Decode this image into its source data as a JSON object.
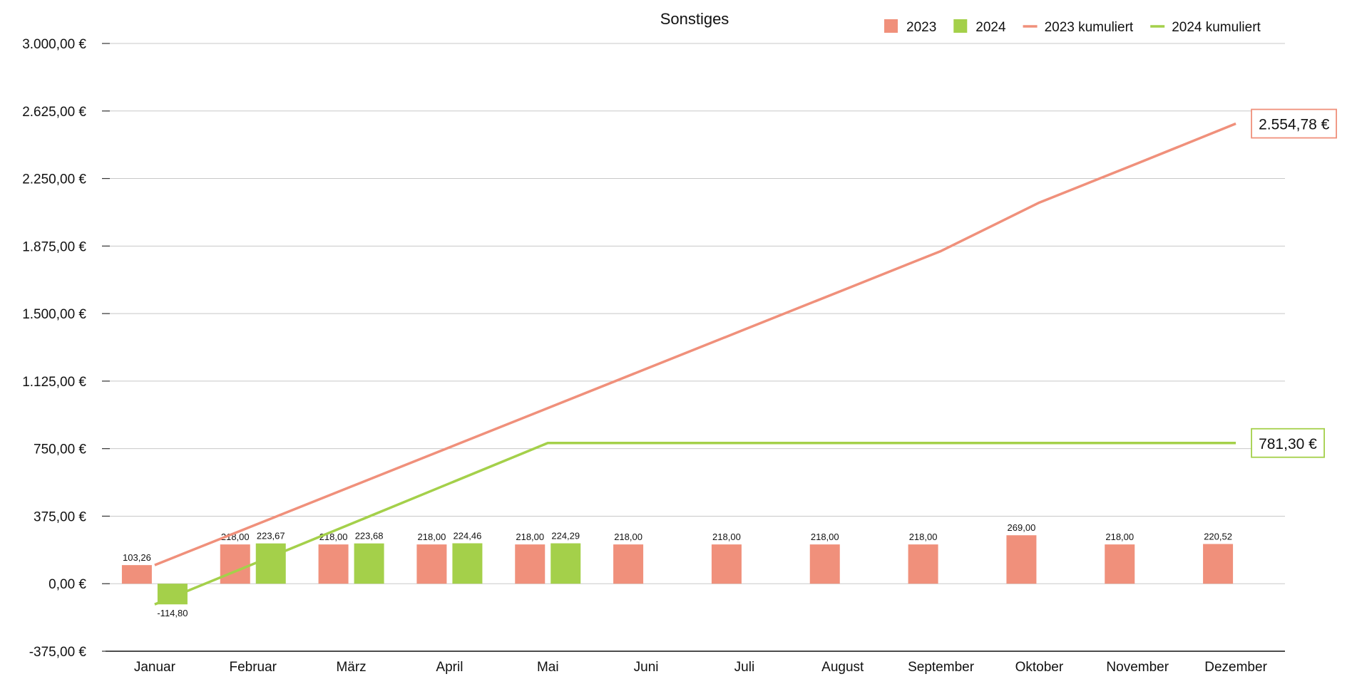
{
  "chart_data": {
    "type": "bar",
    "title": "Sonstiges",
    "xlabel": "",
    "ylabel": "",
    "ylim": [
      -375,
      3000
    ],
    "yticks": [
      -375,
      0,
      375,
      750,
      1125,
      1500,
      1875,
      2250,
      2625,
      3000
    ],
    "ytick_labels": [
      "-375,00 €",
      "0,00 €",
      "375,00 €",
      "750,00 €",
      "1.125,00 €",
      "1.500,00 €",
      "1.875,00 €",
      "2.250,00 €",
      "2.625,00 €",
      "3.000,00 €"
    ],
    "categories": [
      "Januar",
      "Februar",
      "März",
      "April",
      "Mai",
      "Juni",
      "Juli",
      "August",
      "September",
      "Oktober",
      "November",
      "Dezember"
    ],
    "grid": true,
    "legend": "top-right",
    "series": [
      {
        "name": "2023",
        "kind": "bar",
        "color": "#f0907b",
        "values": [
          103.26,
          218.0,
          218.0,
          218.0,
          218.0,
          218.0,
          218.0,
          218.0,
          218.0,
          269.0,
          218.0,
          220.52
        ],
        "labels": [
          "103,26",
          "218,00",
          "218,00",
          "218,00",
          "218,00",
          "218,00",
          "218,00",
          "218,00",
          "218,00",
          "269,00",
          "218,00",
          "220,52"
        ]
      },
      {
        "name": "2024",
        "kind": "bar",
        "color": "#a4d04a",
        "values": [
          -114.8,
          223.67,
          223.68,
          224.46,
          224.29,
          null,
          null,
          null,
          null,
          null,
          null,
          null
        ],
        "labels": [
          "-114,80",
          "223,67",
          "223,68",
          "224,46",
          "224,29",
          "",
          "",
          "",
          "",
          "",
          "",
          ""
        ]
      },
      {
        "name": "2023 kumuliert",
        "kind": "line",
        "color": "#f0907b",
        "values": [
          103.26,
          321.26,
          539.26,
          757.26,
          975.26,
          1193.26,
          1411.26,
          1629.26,
          1847.26,
          2116.26,
          2334.26,
          2554.78
        ],
        "end_label": "2.554,78 €"
      },
      {
        "name": "2024 kumuliert",
        "kind": "line",
        "color": "#a4d04a",
        "values": [
          -114.8,
          108.87,
          332.55,
          557.01,
          781.3,
          781.3,
          781.3,
          781.3,
          781.3,
          781.3,
          781.3,
          781.3
        ],
        "end_label": "781,30 €"
      }
    ]
  }
}
